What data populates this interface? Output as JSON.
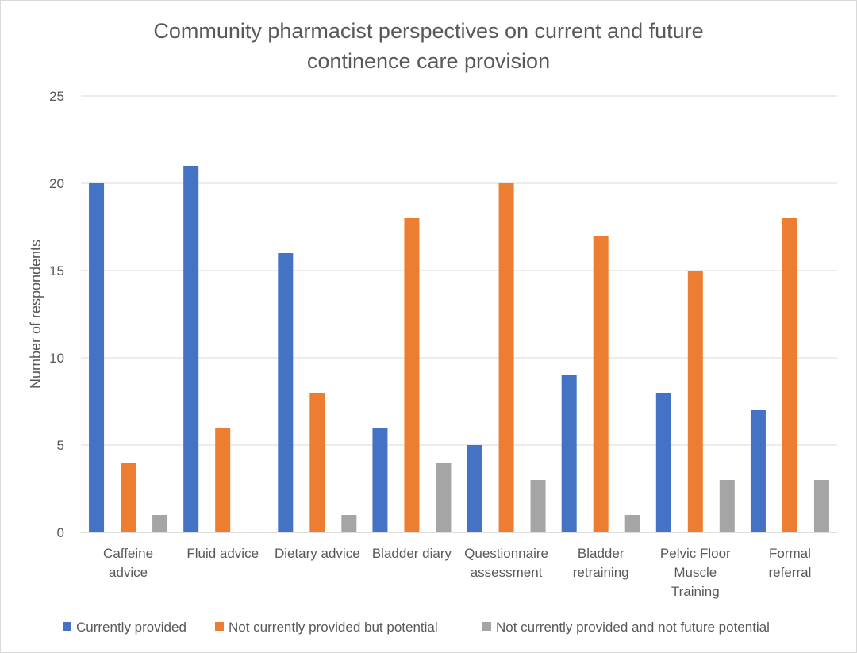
{
  "chart_data": {
    "type": "bar",
    "title_lines": [
      "Community pharmacist perspectives on current and future",
      "continence care provision"
    ],
    "ylabel": "Number of respondents",
    "xlabel": "",
    "ylim": [
      0,
      25
    ],
    "yticks": [
      0,
      5,
      10,
      15,
      20,
      25
    ],
    "grid": true,
    "legend_position": "bottom",
    "categories": [
      [
        "Caffeine",
        "advice"
      ],
      [
        "Fluid advice"
      ],
      [
        "Dietary advice"
      ],
      [
        "Bladder diary"
      ],
      [
        "Questionnaire",
        "assessment"
      ],
      [
        "Bladder",
        "retraining"
      ],
      [
        "Pelvic Floor",
        "Muscle",
        "Training"
      ],
      [
        "Formal",
        "referral"
      ]
    ],
    "series": [
      {
        "name": "Currently provided",
        "color": "#4472C4",
        "values": [
          20,
          21,
          16,
          6,
          5,
          9,
          8,
          7
        ]
      },
      {
        "name": "Not currently provided but potential",
        "color": "#ED7D31",
        "values": [
          4,
          6,
          8,
          18,
          20,
          17,
          15,
          18
        ]
      },
      {
        "name": "Not currently provided and not future potential",
        "color": "#A5A5A5",
        "values": [
          1,
          0,
          1,
          4,
          3,
          1,
          3,
          3
        ]
      }
    ]
  }
}
